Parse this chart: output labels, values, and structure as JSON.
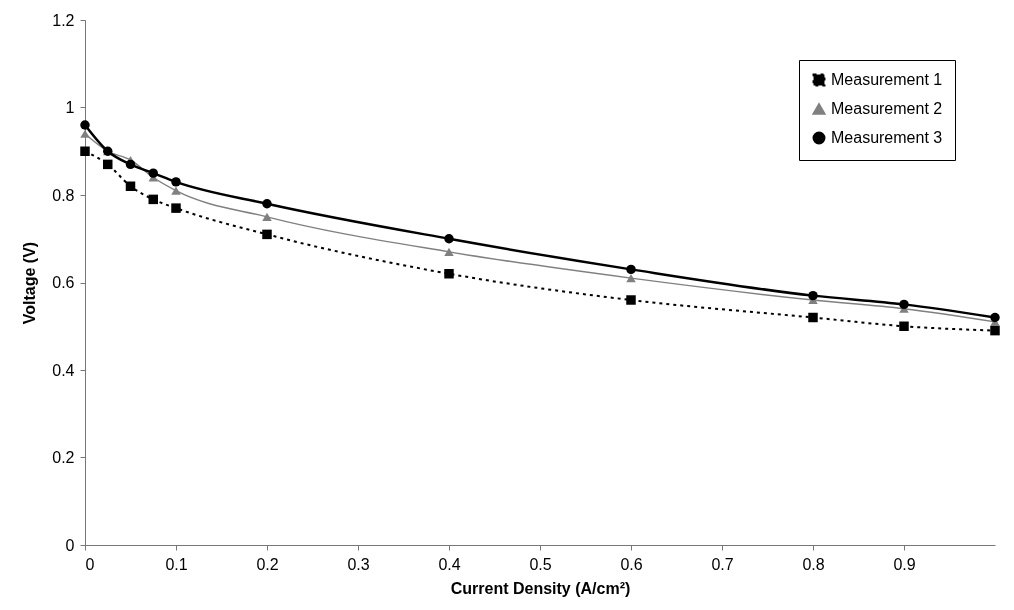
{
  "chart_data": {
    "type": "line",
    "xlabel": "Current Density (A/cm²)",
    "ylabel": "Voltage (V)",
    "x": [
      0,
      0.025,
      0.05,
      0.075,
      0.1,
      0.2,
      0.4,
      0.6,
      0.8,
      0.9,
      1.0
    ],
    "series": [
      {
        "name": "Measurement 1",
        "color": "#000000",
        "marker": "square",
        "line_style": "dotted",
        "values": [
          0.9,
          0.87,
          0.82,
          0.79,
          0.77,
          0.71,
          0.62,
          0.56,
          0.52,
          0.5,
          0.49
        ]
      },
      {
        "name": "Measurement 2",
        "color": "#808080",
        "marker": "triangle",
        "line_style": "solid",
        "values": [
          0.94,
          0.9,
          0.88,
          0.84,
          0.81,
          0.75,
          0.67,
          0.61,
          0.56,
          0.54,
          0.51
        ]
      },
      {
        "name": "Measurement 3",
        "color": "#000000",
        "marker": "circle",
        "line_style": "solid",
        "values": [
          0.96,
          0.9,
          0.87,
          0.85,
          0.83,
          0.78,
          0.7,
          0.63,
          0.57,
          0.55,
          0.52
        ]
      }
    ],
    "xlim": [
      0,
      1
    ],
    "xticks": [
      0,
      0.1,
      0.2,
      0.3,
      0.4,
      0.5,
      0.6,
      0.7,
      0.8,
      0.9
    ],
    "ylim": [
      0,
      1.2
    ],
    "yticks": [
      0,
      0.2,
      0.4,
      0.6,
      0.8,
      1,
      1.2
    ],
    "grid": false,
    "legend": "top right"
  }
}
